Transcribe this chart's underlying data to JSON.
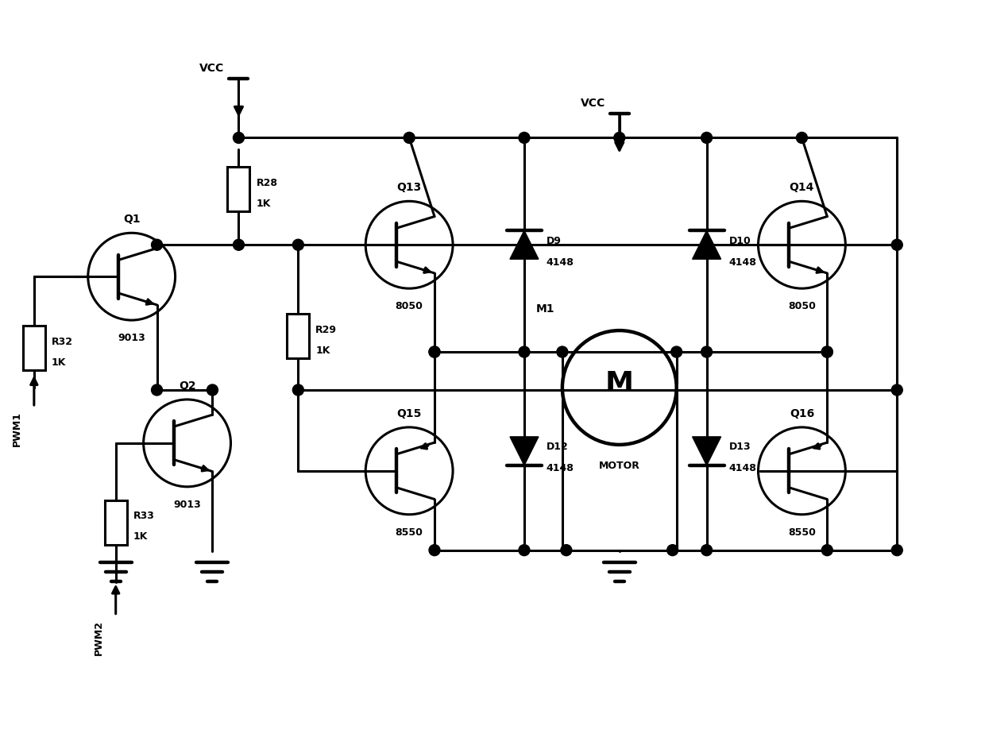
{
  "bg": "#ffffff",
  "lc": "#000000",
  "lw": 2.2,
  "fw": 12.4,
  "fh": 9.43,
  "dpi": 100,
  "xlim": [
    0,
    12.4
  ],
  "ylim": [
    0,
    9.43
  ],
  "transistor_r": 0.55,
  "motor_r": 0.72,
  "dot_r": 0.07,
  "res_hw": 0.14,
  "res_hh": 0.28,
  "diode_hw": 0.18,
  "diode_hh": 0.18,
  "positions": {
    "xPWM": 0.42,
    "xR32": 0.42,
    "xQ1": 1.65,
    "xQ2": 2.35,
    "xR28": 3.0,
    "xR29": 3.75,
    "xQ13": 5.15,
    "xQ15": 5.15,
    "xD9": 6.6,
    "xD12": 6.6,
    "xMot": 7.8,
    "xD10": 8.9,
    "xD13": 8.9,
    "xQ14": 10.1,
    "xQ16": 10.1,
    "xRW": 11.3,
    "yTop": 8.6,
    "yVCC1": 8.45,
    "yVCC2": 8.0,
    "yTR": 7.7,
    "yQ1": 5.95,
    "yBR": 6.35,
    "yQ13": 6.35,
    "yQ14": 6.35,
    "yR28": 7.05,
    "yR29": 5.2,
    "yMid": 5.0,
    "yMot": 4.55,
    "yQ2": 3.85,
    "yQ15": 3.5,
    "yQ16": 3.5,
    "yBot": 2.5,
    "yGnd": 2.25,
    "yR32": 5.05,
    "yR33": 2.85,
    "yPW1": 4.35,
    "yPW2": 1.72,
    "yBR2": 4.0,
    "yQ2b": 4.52
  },
  "fontsize_label": 10,
  "fontsize_type": 9,
  "fontsize_val": 9
}
